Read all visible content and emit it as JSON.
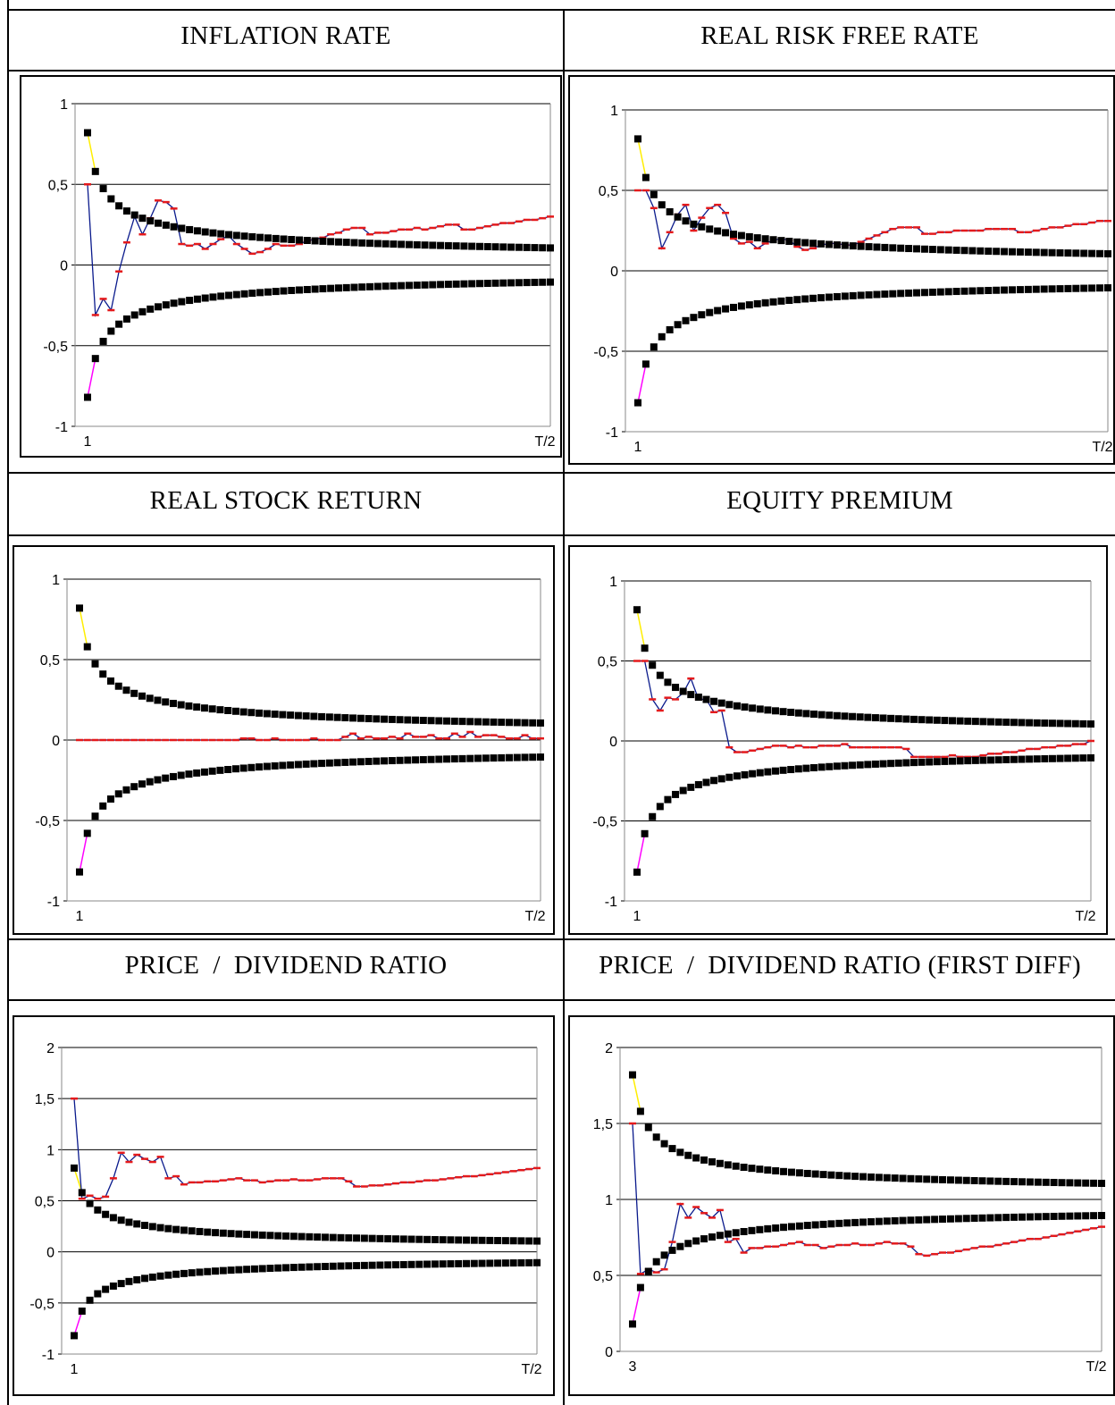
{
  "colors": {
    "band": "#000000",
    "acf_line": "#0a1a8c",
    "acf_marker": "#e41a1c",
    "upper_lead": "#ffee00",
    "lower_lead": "#ff00ff",
    "grid": "#000000"
  },
  "chart_data": [
    {
      "type": "line",
      "title": "INFLATION RATE",
      "x_start_label": "1",
      "x_end_label": "T/2",
      "ylim": [
        -1,
        1
      ],
      "yticks": [
        1,
        0.5,
        0,
        -0.5,
        -1
      ],
      "ytick_labels": [
        "1",
        "0,5",
        "0",
        "-0,5",
        "-1"
      ],
      "n": 60,
      "band_center": 0,
      "band_first": 0.82,
      "acf_first": 0.5,
      "acf": [
        0.5,
        -0.31,
        -0.21,
        -0.28,
        -0.04,
        0.14,
        0.3,
        0.19,
        0.29,
        0.4,
        0.39,
        0.35,
        0.13,
        0.12,
        0.13,
        0.1,
        0.13,
        0.16,
        0.18,
        0.13,
        0.1,
        0.07,
        0.08,
        0.1,
        0.13,
        0.12,
        0.12,
        0.13,
        0.15,
        0.16,
        0.17,
        0.19,
        0.2,
        0.22,
        0.23,
        0.23,
        0.19,
        0.2,
        0.2,
        0.21,
        0.22,
        0.22,
        0.23,
        0.22,
        0.23,
        0.24,
        0.25,
        0.25,
        0.22,
        0.22,
        0.23,
        0.24,
        0.25,
        0.26,
        0.26,
        0.27,
        0.28,
        0.28,
        0.29,
        0.3
      ]
    },
    {
      "type": "line",
      "title": "REAL RISK FREE RATE",
      "x_start_label": "1",
      "x_end_label": "T/2",
      "ylim": [
        -1,
        1
      ],
      "yticks": [
        1,
        0.5,
        0,
        -0.5,
        -1
      ],
      "ytick_labels": [
        "1",
        "0,5",
        "0",
        "-0,5",
        "-1"
      ],
      "n": 60,
      "band_center": 0,
      "band_first": 0.82,
      "acf_first": 0.5,
      "acf": [
        0.5,
        0.5,
        0.39,
        0.14,
        0.24,
        0.35,
        0.41,
        0.25,
        0.33,
        0.39,
        0.41,
        0.36,
        0.2,
        0.17,
        0.18,
        0.14,
        0.17,
        0.19,
        0.2,
        0.19,
        0.15,
        0.13,
        0.14,
        0.16,
        0.17,
        0.17,
        0.16,
        0.16,
        0.18,
        0.2,
        0.22,
        0.24,
        0.26,
        0.27,
        0.27,
        0.27,
        0.23,
        0.23,
        0.24,
        0.24,
        0.25,
        0.25,
        0.25,
        0.25,
        0.26,
        0.26,
        0.26,
        0.26,
        0.24,
        0.24,
        0.25,
        0.26,
        0.27,
        0.27,
        0.28,
        0.29,
        0.29,
        0.3,
        0.31,
        0.31
      ]
    },
    {
      "type": "line",
      "title": "REAL STOCK RETURN",
      "x_start_label": "1",
      "x_end_label": "T/2",
      "ylim": [
        -1,
        1
      ],
      "yticks": [
        1,
        0.5,
        0,
        -0.5,
        -1
      ],
      "ytick_labels": [
        "1",
        "0,5",
        "0",
        "-0,5",
        "-1"
      ],
      "n": 60,
      "band_center": 0,
      "band_first": 0.82,
      "acf_first": 0,
      "acf": [
        0,
        0,
        0,
        0,
        0,
        0,
        0,
        0,
        0,
        0,
        0,
        0,
        0,
        0,
        0,
        0,
        0,
        0,
        0,
        0,
        0,
        0.01,
        0.01,
        0,
        0,
        0.01,
        0,
        0,
        0,
        0,
        0.01,
        0,
        0,
        0,
        0.02,
        0.04,
        0.01,
        0.02,
        0.01,
        0.01,
        0.02,
        0.01,
        0.04,
        0.02,
        0.02,
        0.03,
        0.01,
        0.01,
        0.04,
        0.02,
        0.05,
        0.02,
        0.03,
        0.03,
        0.02,
        0.01,
        0.01,
        0.03,
        0.01,
        0.01
      ]
    },
    {
      "type": "line",
      "title": "EQUITY PREMIUM",
      "x_start_label": "1",
      "x_end_label": "T/2",
      "ylim": [
        -1,
        1
      ],
      "yticks": [
        1,
        0.5,
        0,
        -0.5,
        -1
      ],
      "ytick_labels": [
        "1",
        "0,5",
        "0",
        "-0,5",
        "-1"
      ],
      "n": 60,
      "band_center": 0,
      "band_first": 0.82,
      "acf_first": 0.5,
      "acf": [
        0.5,
        0.5,
        0.26,
        0.19,
        0.27,
        0.26,
        0.3,
        0.39,
        0.26,
        0.26,
        0.18,
        0.19,
        -0.04,
        -0.07,
        -0.07,
        -0.06,
        -0.05,
        -0.04,
        -0.03,
        -0.03,
        -0.04,
        -0.03,
        -0.04,
        -0.04,
        -0.03,
        -0.03,
        -0.03,
        -0.02,
        -0.04,
        -0.04,
        -0.04,
        -0.04,
        -0.04,
        -0.04,
        -0.04,
        -0.05,
        -0.1,
        -0.1,
        -0.1,
        -0.1,
        -0.1,
        -0.09,
        -0.1,
        -0.1,
        -0.1,
        -0.09,
        -0.08,
        -0.08,
        -0.07,
        -0.07,
        -0.06,
        -0.05,
        -0.05,
        -0.04,
        -0.04,
        -0.03,
        -0.03,
        -0.02,
        -0.02,
        0
      ]
    },
    {
      "type": "line",
      "title": "PRICE  /  DIVIDEND RATIO",
      "x_start_label": "1",
      "x_end_label": "T/2",
      "ylim": [
        -1,
        2
      ],
      "yticks": [
        2,
        1.5,
        1,
        0.5,
        0,
        -0.5,
        -1
      ],
      "ytick_labels": [
        "2",
        "1,5",
        "1",
        "0,5",
        "0",
        "-0,5",
        "-1"
      ],
      "n": 60,
      "band_center": 0,
      "band_first": 0.82,
      "acf_first": 1.5,
      "acf": [
        1.5,
        0.52,
        0.55,
        0.52,
        0.54,
        0.72,
        0.97,
        0.88,
        0.95,
        0.91,
        0.88,
        0.93,
        0.72,
        0.74,
        0.66,
        0.68,
        0.68,
        0.69,
        0.69,
        0.7,
        0.71,
        0.72,
        0.7,
        0.7,
        0.68,
        0.69,
        0.7,
        0.7,
        0.71,
        0.7,
        0.7,
        0.71,
        0.72,
        0.72,
        0.72,
        0.69,
        0.64,
        0.64,
        0.65,
        0.65,
        0.66,
        0.67,
        0.68,
        0.68,
        0.69,
        0.7,
        0.7,
        0.71,
        0.72,
        0.73,
        0.74,
        0.74,
        0.75,
        0.76,
        0.77,
        0.78,
        0.79,
        0.8,
        0.81,
        0.82
      ]
    },
    {
      "type": "line",
      "title": "PRICE  /  DIVIDEND RATIO (FIRST DIFF)",
      "x_start_label": "3",
      "x_end_label": "T/2",
      "ylim": [
        0,
        2
      ],
      "yticks": [
        2,
        1.5,
        1,
        0.5,
        0
      ],
      "ytick_labels": [
        "2",
        "1,5",
        "1",
        "0,5",
        "0"
      ],
      "n": 60,
      "band_center": 1,
      "band_first": 0.82,
      "acf_first": 1.5,
      "acf": [
        1.5,
        0.51,
        0.54,
        0.52,
        0.54,
        0.72,
        0.97,
        0.88,
        0.95,
        0.91,
        0.88,
        0.93,
        0.72,
        0.74,
        0.65,
        0.68,
        0.68,
        0.69,
        0.69,
        0.7,
        0.71,
        0.72,
        0.7,
        0.7,
        0.68,
        0.69,
        0.7,
        0.7,
        0.71,
        0.7,
        0.7,
        0.71,
        0.72,
        0.71,
        0.71,
        0.69,
        0.64,
        0.63,
        0.64,
        0.65,
        0.65,
        0.66,
        0.67,
        0.68,
        0.69,
        0.69,
        0.7,
        0.71,
        0.72,
        0.73,
        0.74,
        0.74,
        0.75,
        0.76,
        0.77,
        0.78,
        0.79,
        0.8,
        0.81,
        0.82
      ]
    }
  ]
}
